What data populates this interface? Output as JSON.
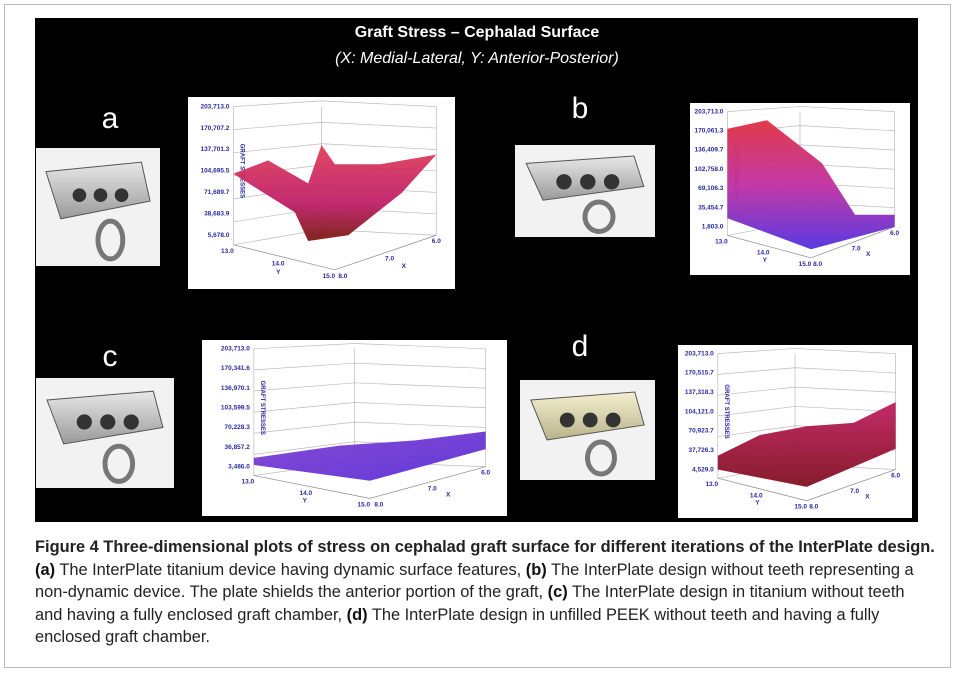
{
  "figure": {
    "title": "Graft Stress – Cephalad Surface",
    "subtitle": "(X: Medial-Lateral, Y: Anterior-Posterior)",
    "panels": [
      {
        "label": "a",
        "z_axis_label": "GRAFT STRESSES",
        "y_axis_label": "Y",
        "x_axis_label": "X",
        "zticks": [
          "203,713.0",
          "170,707.2",
          "137,701.3",
          "104,695.5",
          "71,689.7",
          "38,683.9",
          "5,678.0"
        ],
        "yticks": [
          "13.0",
          "14.0",
          "15.0"
        ],
        "xticks": [
          "8.0",
          "7.0",
          "6.0"
        ]
      },
      {
        "label": "b",
        "z_axis_label": "GRAFT STRESSES",
        "y_axis_label": "Y",
        "x_axis_label": "X",
        "zticks": [
          "203,713.0",
          "170,061.3",
          "136,409.7",
          "102,758.0",
          "69,106.3",
          "35,454.7",
          "1,803.0"
        ],
        "yticks": [
          "13.0",
          "14.0",
          "15.0"
        ],
        "xticks": [
          "8.0",
          "7.0",
          "6.0"
        ]
      },
      {
        "label": "c",
        "z_axis_label": "GRAFT STRESSES",
        "y_axis_label": "Y",
        "x_axis_label": "X",
        "zticks": [
          "203,713.0",
          "170,341.6",
          "136,970.1",
          "103,599.5",
          "70,228.3",
          "36,857.2",
          "3,486.0"
        ],
        "yticks": [
          "13.0",
          "14.0",
          "15.0"
        ],
        "xticks": [
          "8.0",
          "7.0",
          "6.0"
        ]
      },
      {
        "label": "d",
        "z_axis_label": "GRAFT STRESSES",
        "y_axis_label": "Y",
        "x_axis_label": "X",
        "zticks": [
          "203,713.0",
          "170,515.7",
          "137,318.3",
          "104,121.0",
          "70,923.7",
          "37,726.3",
          "4,529.0"
        ],
        "yticks": [
          "13.0",
          "14.0",
          "15.0"
        ],
        "xticks": [
          "8.0",
          "7.0",
          "6.0"
        ]
      }
    ]
  },
  "caption": {
    "title": "Figure 4 Three-dimensional plots of stress on cephalad graft surface for different iterations of the InterPlate design.",
    "items": [
      {
        "label": "(a)",
        "text": "The InterPlate titanium device having dynamic surface features,"
      },
      {
        "label": "(b)",
        "text": "The InterPlate design without teeth representing a non-dynamic device. The plate shields the anterior portion of the graft,"
      },
      {
        "label": "(c)",
        "text": "The InterPlate design in titanium without teeth and having a fully enclosed graft chamber,"
      },
      {
        "label": "(d)",
        "text": "The InterPlate design in unfilled PEEK without teeth and having a fully enclosed graft chamber."
      }
    ]
  }
}
